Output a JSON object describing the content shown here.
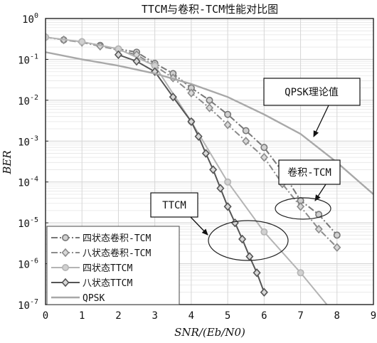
{
  "chart_data": {
    "type": "line",
    "title": "TTCM与卷积-TCM性能对比图",
    "xlabel": "SNR/(Eb/N0)",
    "ylabel": "BER",
    "xlim": [
      0,
      9
    ],
    "ylim": [
      1e-07,
      1
    ],
    "yscale": "log",
    "grid": true,
    "x_ticks": [
      "0",
      "1",
      "2",
      "3",
      "4",
      "5",
      "6",
      "7",
      "8",
      "9"
    ],
    "y_ticks": [
      {
        "base": "10",
        "exp": "0"
      },
      {
        "base": "10",
        "exp": "-1"
      },
      {
        "base": "10",
        "exp": "-2"
      },
      {
        "base": "10",
        "exp": "-3"
      },
      {
        "base": "10",
        "exp": "-4"
      },
      {
        "base": "10",
        "exp": "-5"
      },
      {
        "base": "10",
        "exp": "-6"
      },
      {
        "base": "10",
        "exp": "-7"
      }
    ],
    "legend_position": "bottom-left",
    "series": [
      {
        "name": "四状态卷积-TCM",
        "color": "#777777",
        "dash": "dashdot",
        "marker": "circle",
        "x": [
          0,
          0.5,
          1,
          1.5,
          2,
          2.5,
          3,
          3.5,
          4,
          4.5,
          5,
          5.5,
          6,
          6.5,
          7,
          7.5,
          8
        ],
        "y": [
          0.35,
          0.3,
          0.27,
          0.22,
          0.18,
          0.15,
          0.08,
          0.045,
          0.02,
          0.01,
          0.0045,
          0.0018,
          0.0007,
          0.00018,
          3.5e-05,
          1.6e-05,
          5e-06
        ]
      },
      {
        "name": "八状态卷积-TCM",
        "color": "#8c8c8c",
        "dash": "dashdot",
        "marker": "diamond",
        "x": [
          0,
          0.5,
          1,
          1.5,
          2,
          2.5,
          3,
          3.5,
          4,
          4.5,
          5,
          5.5,
          6,
          6.5,
          7,
          7.5,
          8
        ],
        "y": [
          0.35,
          0.3,
          0.26,
          0.21,
          0.17,
          0.13,
          0.07,
          0.035,
          0.015,
          0.0065,
          0.0025,
          0.001,
          0.0004,
          9e-05,
          2.5e-05,
          7e-06,
          2.5e-06
        ]
      },
      {
        "name": "四状态TTCM",
        "color": "#b4b4b4",
        "dash": "solid",
        "marker": "circle",
        "x": [
          0,
          1,
          2,
          3,
          4,
          5,
          6,
          7,
          8
        ],
        "y": [
          0.35,
          0.27,
          0.18,
          0.07,
          0.003,
          0.0001,
          6e-06,
          6e-07,
          5e-08
        ]
      },
      {
        "name": "八状态TTCM",
        "color": "#555555",
        "dash": "solid",
        "marker": "diamond",
        "x": [
          2,
          2.5,
          3,
          3.5,
          4,
          4.2,
          4.4,
          4.6,
          4.8,
          5,
          5.2,
          5.4,
          5.6,
          5.8,
          6
        ],
        "y": [
          0.13,
          0.09,
          0.05,
          0.012,
          0.003,
          0.0013,
          0.0005,
          0.0002,
          7e-05,
          2.5e-05,
          1e-05,
          4e-06,
          1.5e-06,
          6e-07,
          2e-07
        ]
      },
      {
        "name": "QPSK",
        "color": "#a8a8a8",
        "dash": "solid",
        "marker": "none",
        "x": [
          0,
          1,
          2,
          3,
          4,
          5,
          6,
          7,
          8,
          9
        ],
        "y": [
          0.15,
          0.1,
          0.07,
          0.045,
          0.025,
          0.012,
          0.0045,
          0.0015,
          0.0003,
          5e-05
        ]
      }
    ],
    "annotations": [
      {
        "text": "QPSK理论值"
      },
      {
        "text": "卷积-TCM"
      },
      {
        "text": "TTCM"
      }
    ]
  }
}
